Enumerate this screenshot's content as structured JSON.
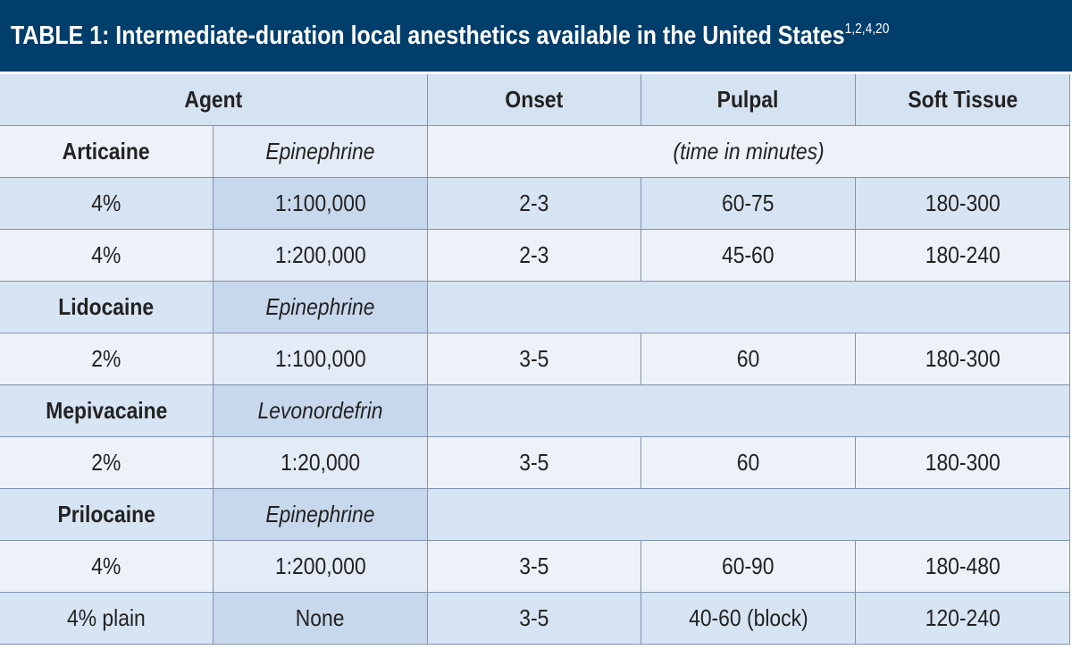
{
  "table": {
    "title": "TABLE 1: Intermediate-duration local anesthetics available in the United States",
    "title_refs": "1,2,4,20",
    "header": [
      "Agent",
      "Onset",
      "Pulpal",
      "Soft Tissue"
    ],
    "rows": [
      [
        "Articaine",
        "Epinephrine",
        "(time in minutes)"
      ],
      [
        "4%",
        "1:100,000",
        "2-3",
        "60-75",
        "180-300"
      ],
      [
        "4%",
        "1:200,000",
        "2-3",
        "45-60",
        "180-240"
      ],
      [
        "Lidocaine",
        "Epinephrine"
      ],
      [
        "2%",
        "1:100,000",
        "3-5",
        "60",
        "180-300"
      ],
      [
        "Mepivacaine",
        "Levonordefrin"
      ],
      [
        "2%",
        "1:20,000",
        "3-5",
        "60",
        "180-300"
      ],
      [
        "Prilocaine",
        "Epinephrine"
      ],
      [
        "4%",
        "1:200,000",
        "3-5",
        "60-90",
        "180-480"
      ],
      [
        "4% plain",
        "None",
        "3-5",
        "40-60 (block)",
        "120-240"
      ]
    ]
  }
}
